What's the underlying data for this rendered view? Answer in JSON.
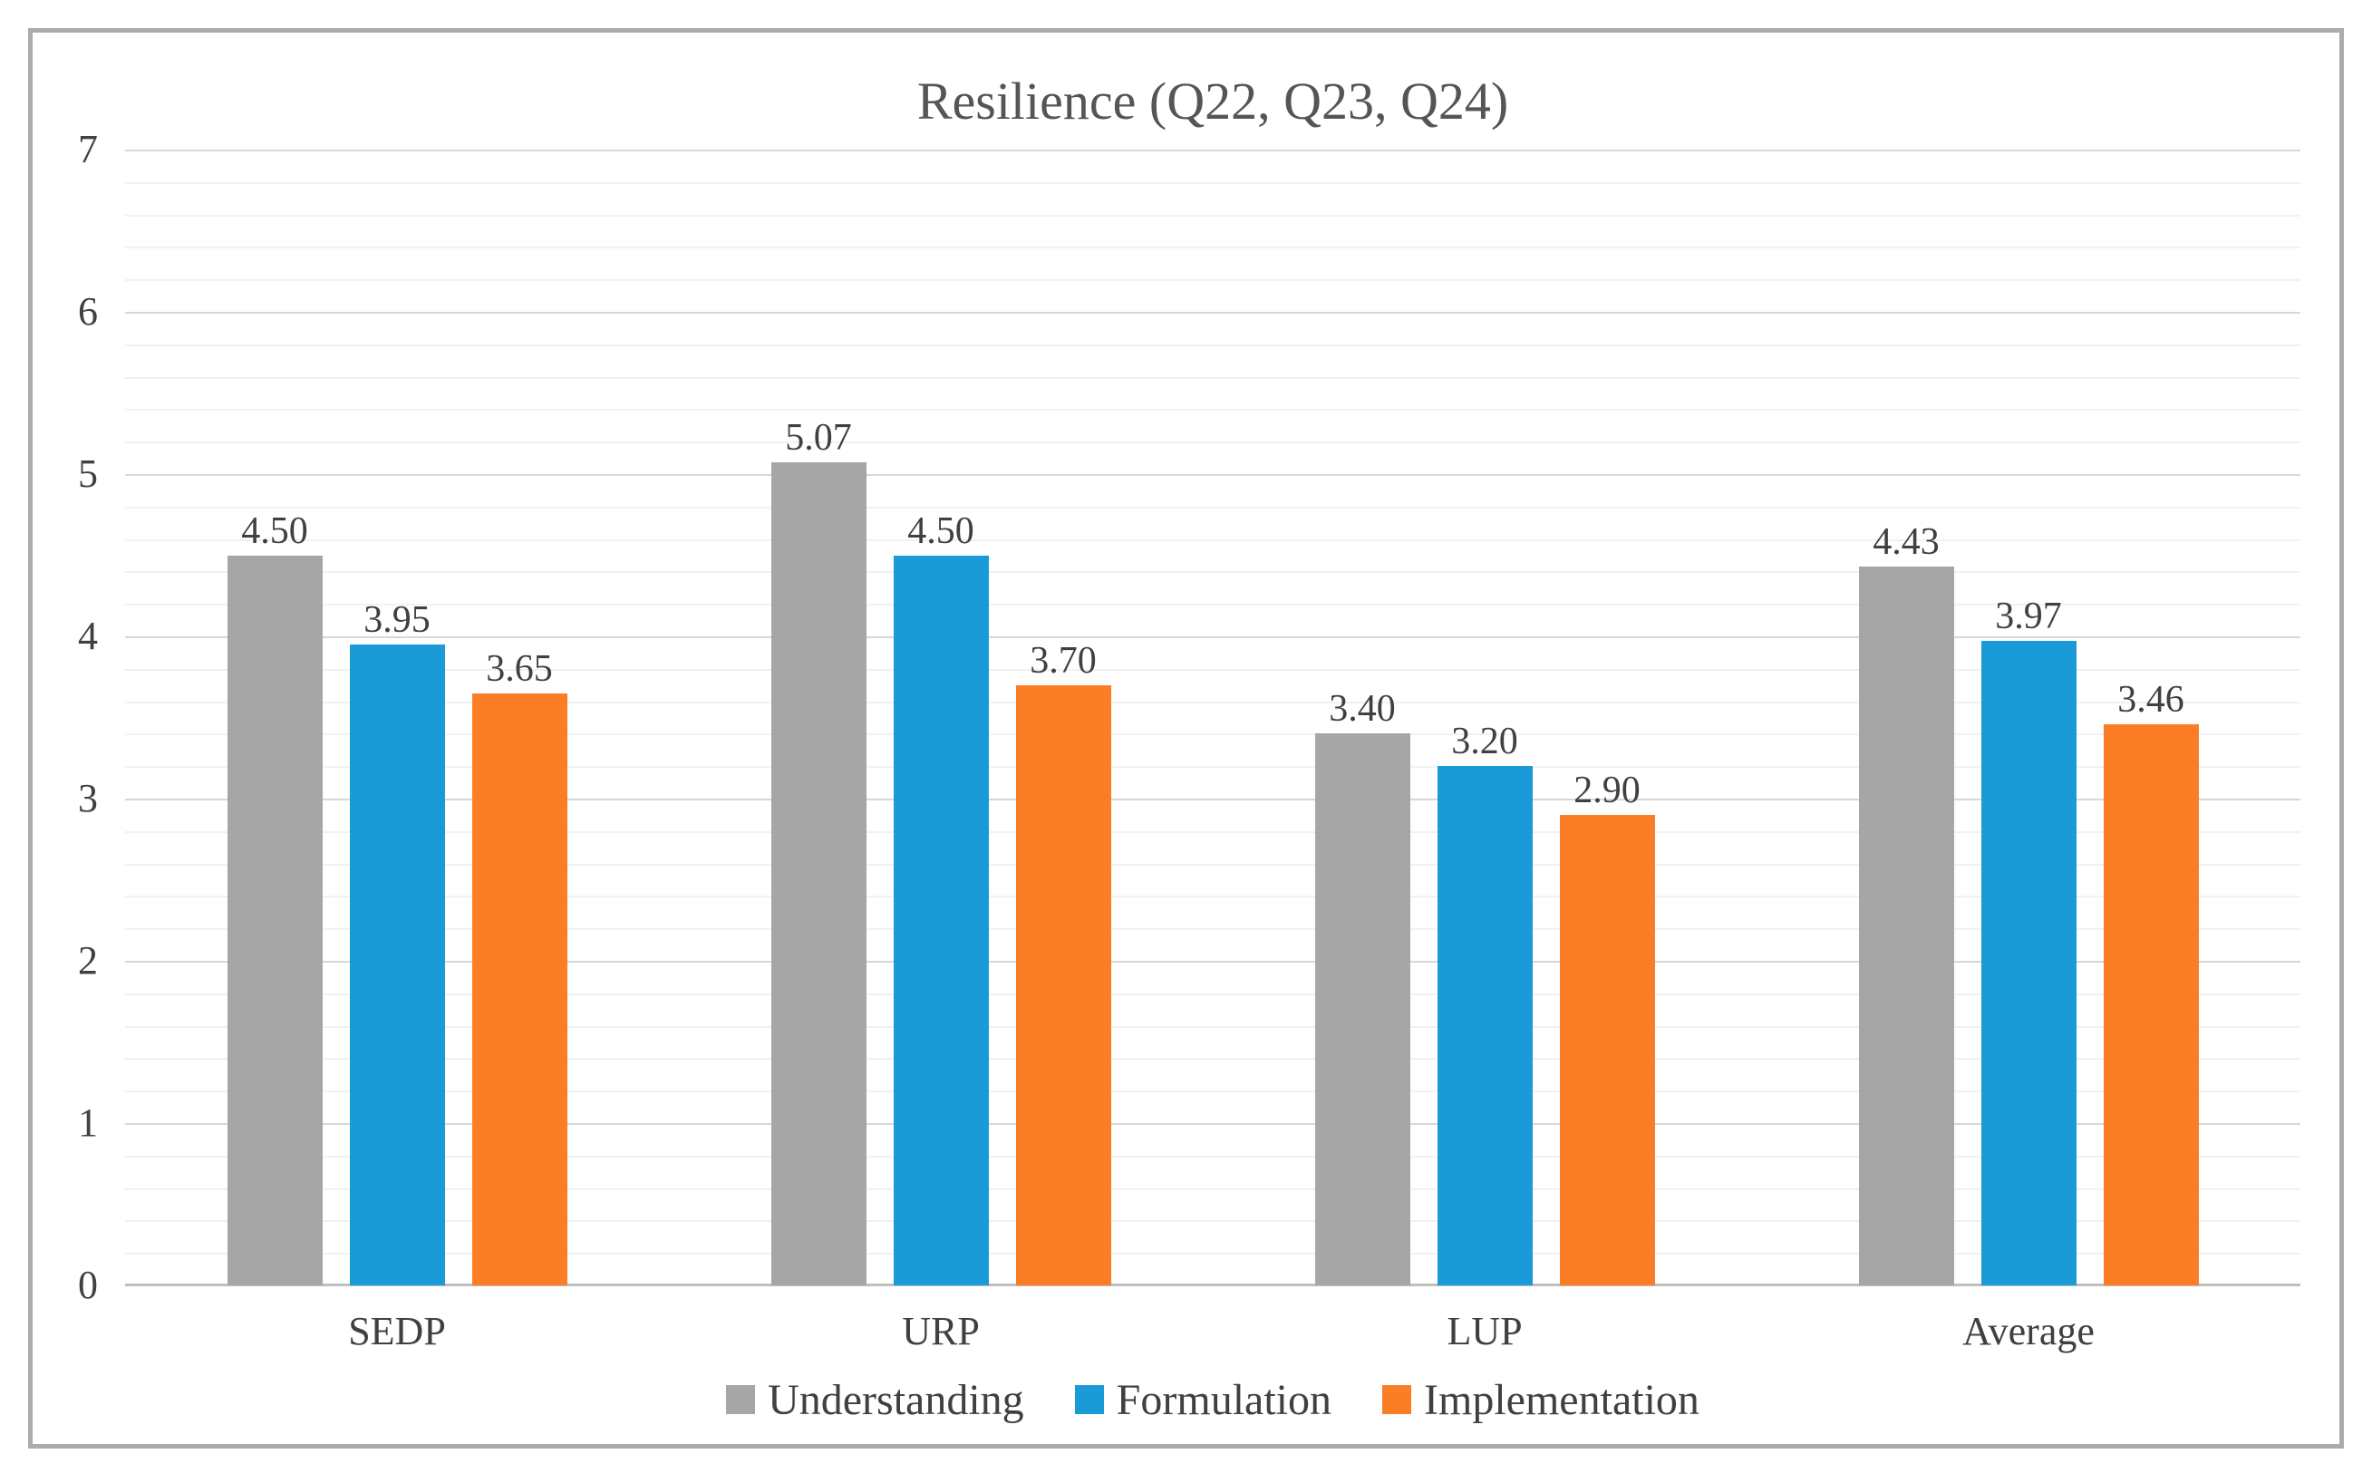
{
  "chart_data": {
    "type": "bar",
    "title": "Resilience (Q22, Q23, Q24)",
    "categories": [
      "SEDP",
      "URP",
      "LUP",
      "Average"
    ],
    "series": [
      {
        "name": "Understanding",
        "color": "#A6A6A6",
        "values": [
          4.5,
          5.07,
          3.4,
          4.43
        ]
      },
      {
        "name": "Formulation",
        "color": "#1A9BD7",
        "values": [
          3.95,
          4.5,
          3.2,
          3.97
        ]
      },
      {
        "name": "Implementation",
        "color": "#FB7D26",
        "values": [
          3.65,
          3.7,
          2.9,
          3.46
        ]
      }
    ],
    "data_labels": [
      "4.50",
      "3.95",
      "3.65",
      "5.07",
      "4.50",
      "3.70",
      "3.40",
      "3.20",
      "2.90",
      "4.43",
      "3.97",
      "3.46"
    ],
    "xlabel": "",
    "ylabel": "",
    "ylim": [
      0,
      7
    ],
    "y_major_ticks": [
      0,
      1,
      2,
      3,
      4,
      5,
      6,
      7
    ],
    "y_minor_step": 0.2,
    "grid": true,
    "legend_position": "bottom"
  },
  "style_colors": {
    "frame_border": "#ABABAB",
    "axis_line": "#BFBFBF",
    "major_gridline": "#D7D7D7",
    "minor_gridline": "#F1F1F1",
    "text": "#404040",
    "title_text": "#555555"
  }
}
